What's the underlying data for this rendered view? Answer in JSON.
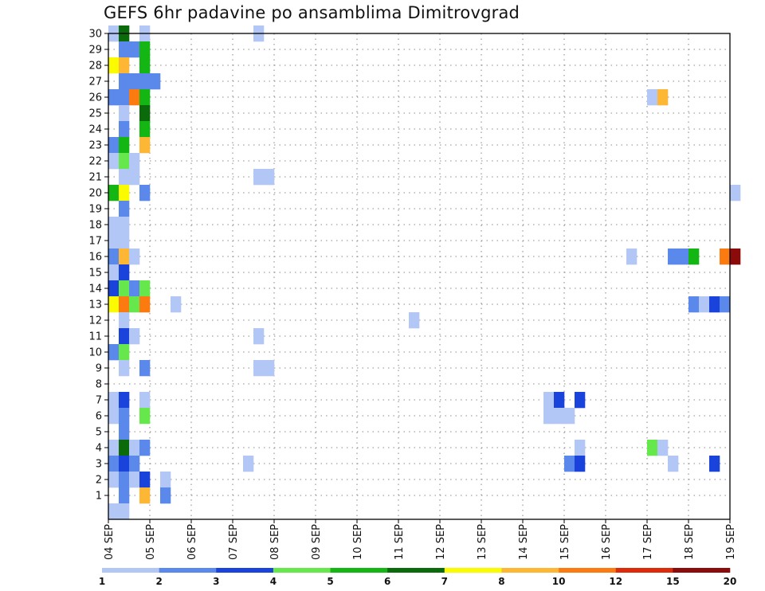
{
  "title": "GEFS 6hr padavine po ansamblima Dimitrovgrad",
  "chart_data": {
    "type": "heatmap",
    "title": "GEFS 6hr padavine po ansamblima Dimitrovgrad",
    "xlabel": "",
    "ylabel": "",
    "x_ticks": [
      "04 SEP",
      "05 SEP",
      "06 SEP",
      "07 SEP",
      "08 SEP",
      "09 SEP",
      "10 SEP",
      "11 SEP",
      "12 SEP",
      "13 SEP",
      "14 SEP",
      "15 SEP",
      "16 SEP",
      "17 SEP",
      "18 SEP",
      "19 SEP"
    ],
    "y_ticks": [
      1,
      2,
      3,
      4,
      5,
      6,
      7,
      8,
      9,
      10,
      11,
      12,
      13,
      14,
      15,
      16,
      17,
      18,
      19,
      20,
      21,
      22,
      23,
      24,
      25,
      26,
      27,
      28,
      29,
      30
    ],
    "time_step_hours": 6,
    "grid": true,
    "colorbar": {
      "bounds": [
        "1",
        "2",
        "3",
        "4",
        "5",
        "6",
        "7",
        "8",
        "10",
        "12",
        "15",
        "20"
      ],
      "colors": [
        "#b3c7f7",
        "#5b88eb",
        "#1a43dc",
        "#66e84c",
        "#13b613",
        "#0b6b0b",
        "#fbfb00",
        "#fdb734",
        "#fc7b10",
        "#dc2b0a",
        "#8b0a0a"
      ]
    },
    "cells": [
      {
        "m": 30,
        "t": 0,
        "c": 0
      },
      {
        "m": 30,
        "t": 1,
        "c": 5
      },
      {
        "m": 30,
        "t": 3,
        "c": 0
      },
      {
        "m": 30,
        "t": 14,
        "c": 0
      },
      {
        "m": 29,
        "t": 1,
        "c": 1
      },
      {
        "m": 29,
        "t": 2,
        "c": 1
      },
      {
        "m": 29,
        "t": 3,
        "c": 4
      },
      {
        "m": 28,
        "t": 0,
        "c": 6
      },
      {
        "m": 28,
        "t": 1,
        "c": 7
      },
      {
        "m": 28,
        "t": 3,
        "c": 4
      },
      {
        "m": 27,
        "t": 1,
        "c": 1
      },
      {
        "m": 27,
        "t": 2,
        "c": 1
      },
      {
        "m": 27,
        "t": 3,
        "c": 1
      },
      {
        "m": 27,
        "t": 4,
        "c": 1
      },
      {
        "m": 26,
        "t": 0,
        "c": 1
      },
      {
        "m": 26,
        "t": 1,
        "c": 1
      },
      {
        "m": 26,
        "t": 2,
        "c": 8
      },
      {
        "m": 26,
        "t": 3,
        "c": 4
      },
      {
        "m": 26,
        "t": 52,
        "c": 0
      },
      {
        "m": 26,
        "t": 53,
        "c": 7
      },
      {
        "m": 25,
        "t": 1,
        "c": 0
      },
      {
        "m": 25,
        "t": 3,
        "c": 5
      },
      {
        "m": 24,
        "t": 1,
        "c": 1
      },
      {
        "m": 24,
        "t": 3,
        "c": 4
      },
      {
        "m": 23,
        "t": 0,
        "c": 1
      },
      {
        "m": 23,
        "t": 1,
        "c": 4
      },
      {
        "m": 23,
        "t": 3,
        "c": 7
      },
      {
        "m": 22,
        "t": 0,
        "c": 0
      },
      {
        "m": 22,
        "t": 1,
        "c": 3
      },
      {
        "m": 22,
        "t": 2,
        "c": 0
      },
      {
        "m": 21,
        "t": 1,
        "c": 0
      },
      {
        "m": 21,
        "t": 2,
        "c": 0
      },
      {
        "m": 21,
        "t": 14,
        "c": 0
      },
      {
        "m": 21,
        "t": 15,
        "c": 0
      },
      {
        "m": 20,
        "t": 0,
        "c": 4
      },
      {
        "m": 20,
        "t": 1,
        "c": 6
      },
      {
        "m": 20,
        "t": 3,
        "c": 1
      },
      {
        "m": 20,
        "t": 60,
        "c": 0
      },
      {
        "m": 19,
        "t": 1,
        "c": 1
      },
      {
        "m": 18,
        "t": 0,
        "c": 0
      },
      {
        "m": 18,
        "t": 1,
        "c": 0
      },
      {
        "m": 17,
        "t": 0,
        "c": 0
      },
      {
        "m": 17,
        "t": 1,
        "c": 0
      },
      {
        "m": 16,
        "t": 0,
        "c": 1
      },
      {
        "m": 16,
        "t": 1,
        "c": 7
      },
      {
        "m": 16,
        "t": 2,
        "c": 0
      },
      {
        "m": 16,
        "t": 50,
        "c": 0
      },
      {
        "m": 16,
        "t": 54,
        "c": 1
      },
      {
        "m": 16,
        "t": 55,
        "c": 1
      },
      {
        "m": 16,
        "t": 56,
        "c": 4
      },
      {
        "m": 16,
        "t": 59,
        "c": 8
      },
      {
        "m": 16,
        "t": 60,
        "c": 10
      },
      {
        "m": 15,
        "t": 0,
        "c": 0
      },
      {
        "m": 15,
        "t": 1,
        "c": 2
      },
      {
        "m": 14,
        "t": 0,
        "c": 2
      },
      {
        "m": 14,
        "t": 1,
        "c": 3
      },
      {
        "m": 14,
        "t": 2,
        "c": 1
      },
      {
        "m": 14,
        "t": 3,
        "c": 3
      },
      {
        "m": 13,
        "t": 0,
        "c": 6
      },
      {
        "m": 13,
        "t": 1,
        "c": 8
      },
      {
        "m": 13,
        "t": 2,
        "c": 3
      },
      {
        "m": 13,
        "t": 3,
        "c": 8
      },
      {
        "m": 13,
        "t": 6,
        "c": 0
      },
      {
        "m": 13,
        "t": 56,
        "c": 1
      },
      {
        "m": 13,
        "t": 57,
        "c": 0
      },
      {
        "m": 13,
        "t": 58,
        "c": 2
      },
      {
        "m": 13,
        "t": 59,
        "c": 1
      },
      {
        "m": 12,
        "t": 1,
        "c": 0
      },
      {
        "m": 12,
        "t": 29,
        "c": 0
      },
      {
        "m": 11,
        "t": 1,
        "c": 2
      },
      {
        "m": 11,
        "t": 2,
        "c": 0
      },
      {
        "m": 11,
        "t": 14,
        "c": 0
      },
      {
        "m": 10,
        "t": 0,
        "c": 1
      },
      {
        "m": 10,
        "t": 1,
        "c": 3
      },
      {
        "m": 9,
        "t": 1,
        "c": 0
      },
      {
        "m": 9,
        "t": 3,
        "c": 1
      },
      {
        "m": 9,
        "t": 14,
        "c": 0
      },
      {
        "m": 9,
        "t": 15,
        "c": 0
      },
      {
        "m": 7,
        "t": 0,
        "c": 0
      },
      {
        "m": 7,
        "t": 1,
        "c": 2
      },
      {
        "m": 7,
        "t": 3,
        "c": 0
      },
      {
        "m": 7,
        "t": 42,
        "c": 0
      },
      {
        "m": 7,
        "t": 43,
        "c": 2
      },
      {
        "m": 7,
        "t": 45,
        "c": 2
      },
      {
        "m": 6,
        "t": 0,
        "c": 0
      },
      {
        "m": 6,
        "t": 1,
        "c": 1
      },
      {
        "m": 6,
        "t": 3,
        "c": 3
      },
      {
        "m": 6,
        "t": 42,
        "c": 0
      },
      {
        "m": 6,
        "t": 43,
        "c": 0
      },
      {
        "m": 6,
        "t": 44,
        "c": 0
      },
      {
        "m": 5,
        "t": 1,
        "c": 1
      },
      {
        "m": 4,
        "t": 0,
        "c": 0
      },
      {
        "m": 4,
        "t": 1,
        "c": 5
      },
      {
        "m": 4,
        "t": 2,
        "c": 0
      },
      {
        "m": 4,
        "t": 3,
        "c": 1
      },
      {
        "m": 4,
        "t": 45,
        "c": 0
      },
      {
        "m": 4,
        "t": 52,
        "c": 3
      },
      {
        "m": 4,
        "t": 53,
        "c": 0
      },
      {
        "m": 3,
        "t": 0,
        "c": 1
      },
      {
        "m": 3,
        "t": 1,
        "c": 2
      },
      {
        "m": 3,
        "t": 2,
        "c": 1
      },
      {
        "m": 3,
        "t": 13,
        "c": 0
      },
      {
        "m": 3,
        "t": 44,
        "c": 1
      },
      {
        "m": 3,
        "t": 45,
        "c": 2
      },
      {
        "m": 3,
        "t": 54,
        "c": 0
      },
      {
        "m": 3,
        "t": 58,
        "c": 2
      },
      {
        "m": 2,
        "t": 0,
        "c": 0
      },
      {
        "m": 2,
        "t": 1,
        "c": 1
      },
      {
        "m": 2,
        "t": 2,
        "c": 0
      },
      {
        "m": 2,
        "t": 3,
        "c": 2
      },
      {
        "m": 2,
        "t": 5,
        "c": 0
      },
      {
        "m": 1,
        "t": 1,
        "c": 1
      },
      {
        "m": 1,
        "t": 3,
        "c": 7
      },
      {
        "m": 1,
        "t": 5,
        "c": 1
      },
      {
        "m": 0,
        "t": 0,
        "c": 0
      },
      {
        "m": 0,
        "t": 1,
        "c": 0
      }
    ]
  }
}
